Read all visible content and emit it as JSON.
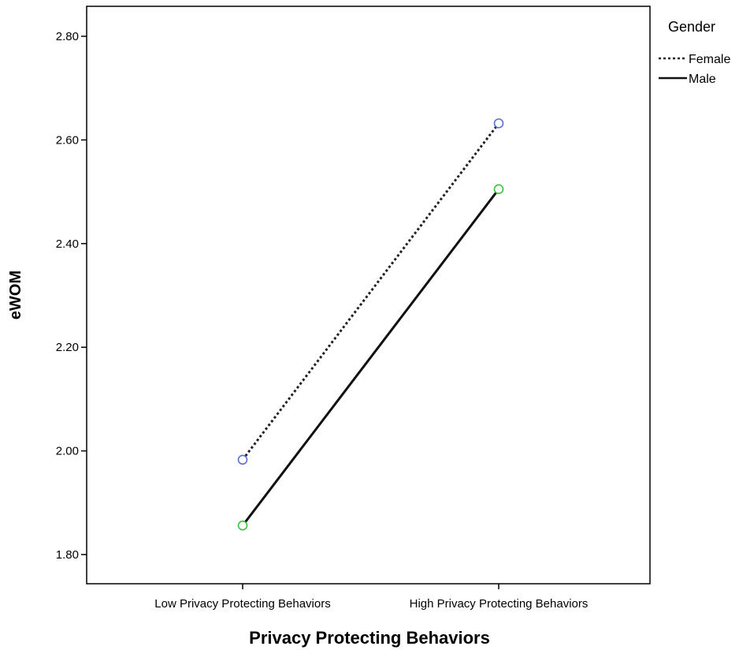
{
  "chart_data": {
    "type": "line",
    "xlabel": "Privacy Protecting Behaviors",
    "ylabel": "eWOM",
    "categories": [
      "Low Privacy Protecting Behaviors",
      "High Privacy Protecting Behaviors"
    ],
    "ylim": [
      1.76,
      2.86
    ],
    "yticks": [
      "1.80",
      "2.00",
      "2.20",
      "2.40",
      "2.60",
      "2.80"
    ],
    "grid": false,
    "legend": {
      "title": "Gender",
      "placement": "right"
    },
    "series": [
      {
        "name": "Female",
        "values": [
          1.983,
          2.632
        ],
        "line_style": "dotted",
        "line_color": "#222222",
        "marker_color": "#5b6fd0"
      },
      {
        "name": "Male",
        "values": [
          1.856,
          2.505
        ],
        "line_style": "solid",
        "line_color": "#111111",
        "marker_color": "#3fbf3f"
      }
    ]
  }
}
